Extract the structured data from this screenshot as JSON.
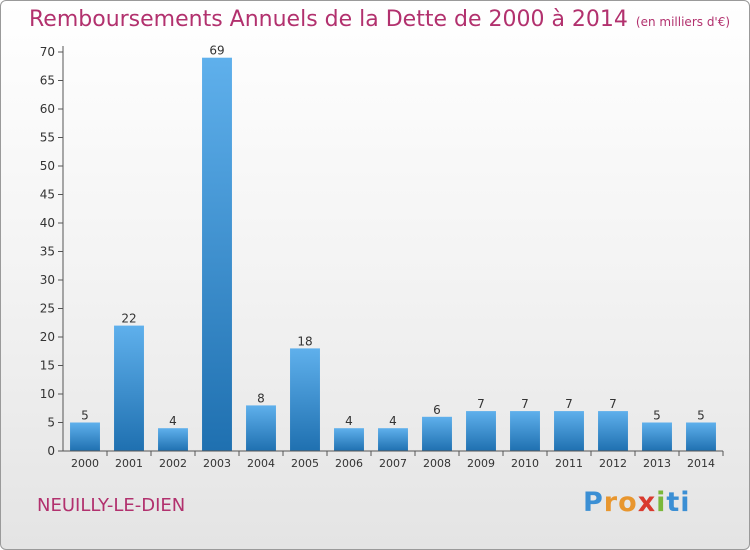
{
  "title": "Remboursements Annuels de la Dette de 2000 à 2014",
  "subtitle": "(en milliers d'€)",
  "town": "NEUILLY-LE-DIEN",
  "logo": {
    "letters": [
      "P",
      "r",
      "o",
      "x",
      "i",
      "t",
      "i"
    ],
    "colors": [
      "#3b8fd4",
      "#e8962e",
      "#e8962e",
      "#d93a2e",
      "#7ab83a",
      "#3b8fd4",
      "#3b8fd4"
    ]
  },
  "colors": {
    "bar_light": "#5fb0ec",
    "bar_dark": "#1f70b0",
    "title": "#b2316e"
  },
  "chart_data": {
    "type": "bar",
    "title": "Remboursements Annuels de la Dette de 2000 à 2014",
    "subtitle": "(en milliers d'€)",
    "categories": [
      "2000",
      "2001",
      "2002",
      "2003",
      "2004",
      "2005",
      "2006",
      "2007",
      "2008",
      "2009",
      "2010",
      "2011",
      "2012",
      "2013",
      "2014"
    ],
    "values": [
      5,
      22,
      4,
      69,
      8,
      18,
      4,
      4,
      6,
      7,
      7,
      7,
      7,
      5,
      5
    ],
    "ylim": [
      0,
      70
    ],
    "yticks": [
      0,
      5,
      10,
      15,
      20,
      25,
      30,
      35,
      40,
      45,
      50,
      55,
      60,
      65,
      70
    ],
    "grid": false,
    "data_labels": true
  }
}
